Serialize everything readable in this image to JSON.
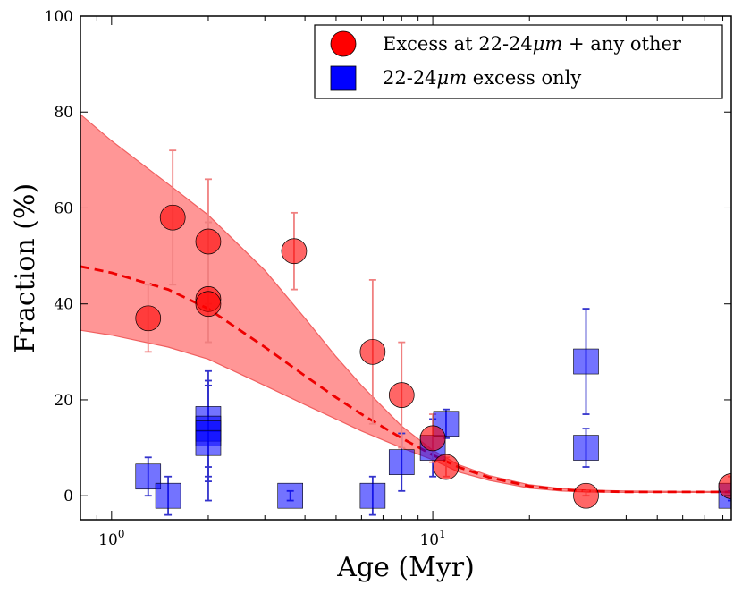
{
  "chart_data": {
    "type": "scatter",
    "x_scale": "log",
    "xlabel": "Age (Myr)",
    "ylabel": "Fraction (%)",
    "xlim": [
      0.8,
      85
    ],
    "ylim": [
      -5,
      100
    ],
    "xticks": [
      {
        "value": 1,
        "base": "10",
        "exp": "0"
      },
      {
        "value": 10,
        "base": "10",
        "exp": "1"
      }
    ],
    "yticks": [
      0,
      20,
      40,
      60,
      80,
      100
    ],
    "series": [
      {
        "name": "Excess at 22-24μm + any other",
        "legend_prefix": "Excess at 22-24",
        "legend_unit": "μm",
        "legend_suffix": " + any other",
        "marker": "circle",
        "color": "#ff0000",
        "errorbar_color": "#f08080",
        "points": [
          {
            "x": 1.3,
            "y": 37,
            "lo": 30,
            "hi": 44
          },
          {
            "x": 1.55,
            "y": 58,
            "lo": 44,
            "hi": 72
          },
          {
            "x": 2.0,
            "y": 53,
            "lo": 40,
            "hi": 66
          },
          {
            "x": 2.0,
            "y": 41,
            "lo": 32,
            "hi": 57
          },
          {
            "x": 2.0,
            "y": 40,
            "lo": 32,
            "hi": 57
          },
          {
            "x": 3.7,
            "y": 51,
            "lo": 43,
            "hi": 59
          },
          {
            "x": 6.5,
            "y": 30,
            "lo": 15,
            "hi": 45
          },
          {
            "x": 8.0,
            "y": 21,
            "lo": 10,
            "hi": 32
          },
          {
            "x": 10.0,
            "y": 12,
            "lo": 7,
            "hi": 17
          },
          {
            "x": 11.0,
            "y": 6,
            "lo": 4,
            "hi": 8
          },
          {
            "x": 30.0,
            "y": 0,
            "lo": 0,
            "hi": 1
          },
          {
            "x": 85.0,
            "y": 2,
            "lo": 0,
            "hi": 4
          }
        ]
      },
      {
        "name": "22-24μm excess only",
        "legend_prefix": "22-24",
        "legend_unit": "μm",
        "legend_suffix": " excess only",
        "marker": "square",
        "color": "#0000ff",
        "errorbar_color": "#3333cc",
        "points": [
          {
            "x": 1.3,
            "y": 4,
            "lo": 0,
            "hi": 8
          },
          {
            "x": 1.5,
            "y": 0,
            "lo": -4,
            "hi": 4
          },
          {
            "x": 2.0,
            "y": 16,
            "lo": 6,
            "hi": 26
          },
          {
            "x": 2.0,
            "y": 14,
            "lo": 4,
            "hi": 24
          },
          {
            "x": 2.0,
            "y": 13,
            "lo": 3,
            "hi": 23
          },
          {
            "x": 2.0,
            "y": 11,
            "lo": -1,
            "hi": 23
          },
          {
            "x": 3.6,
            "y": 0,
            "lo": -1,
            "hi": 1
          },
          {
            "x": 6.5,
            "y": 0,
            "lo": -4,
            "hi": 4
          },
          {
            "x": 8.0,
            "y": 7,
            "lo": 1,
            "hi": 13
          },
          {
            "x": 10.0,
            "y": 10,
            "lo": 4,
            "hi": 16
          },
          {
            "x": 11.0,
            "y": 15,
            "lo": 12,
            "hi": 18
          },
          {
            "x": 30.0,
            "y": 28,
            "lo": 17,
            "hi": 39
          },
          {
            "x": 30.0,
            "y": 10,
            "lo": 6,
            "hi": 14
          },
          {
            "x": 85.0,
            "y": 0,
            "lo": -1,
            "hi": 1
          }
        ]
      }
    ],
    "fit": {
      "name": "decay fit (dashed)",
      "color": "#ee0000",
      "band_color": "#ff9090",
      "band_edge_color": "#f06060",
      "points": [
        {
          "x": 0.8,
          "y": 47.8,
          "lo": 34.5,
          "hi": 79.5
        },
        {
          "x": 1.0,
          "y": 46.5,
          "lo": 33.5,
          "hi": 74.0
        },
        {
          "x": 1.5,
          "y": 43.0,
          "lo": 31.0,
          "hi": 65.0
        },
        {
          "x": 2.0,
          "y": 39.0,
          "lo": 28.5,
          "hi": 58.5
        },
        {
          "x": 3.0,
          "y": 31.0,
          "lo": 23.0,
          "hi": 47.0
        },
        {
          "x": 4.0,
          "y": 25.0,
          "lo": 19.0,
          "hi": 37.0
        },
        {
          "x": 5.0,
          "y": 20.5,
          "lo": 16.0,
          "hi": 29.0
        },
        {
          "x": 6.0,
          "y": 17.0,
          "lo": 13.5,
          "hi": 23.0
        },
        {
          "x": 8.0,
          "y": 12.0,
          "lo": 10.0,
          "hi": 14.5
        },
        {
          "x": 10.0,
          "y": 8.5,
          "lo": 7.5,
          "hi": 9.5
        },
        {
          "x": 12.0,
          "y": 6.0,
          "lo": 5.0,
          "hi": 6.5
        },
        {
          "x": 15.0,
          "y": 3.8,
          "lo": 3.2,
          "hi": 4.2
        },
        {
          "x": 20.0,
          "y": 2.0,
          "lo": 1.6,
          "hi": 2.3
        },
        {
          "x": 25.0,
          "y": 1.3,
          "lo": 1.0,
          "hi": 1.5
        },
        {
          "x": 30.0,
          "y": 1.0,
          "lo": 0.8,
          "hi": 1.2
        },
        {
          "x": 40.0,
          "y": 0.8,
          "lo": 0.7,
          "hi": 1.0
        },
        {
          "x": 60.0,
          "y": 0.8,
          "lo": 0.7,
          "hi": 0.9
        },
        {
          "x": 85.0,
          "y": 0.8,
          "lo": 0.7,
          "hi": 0.9
        }
      ]
    },
    "legend_position": "top-right"
  }
}
